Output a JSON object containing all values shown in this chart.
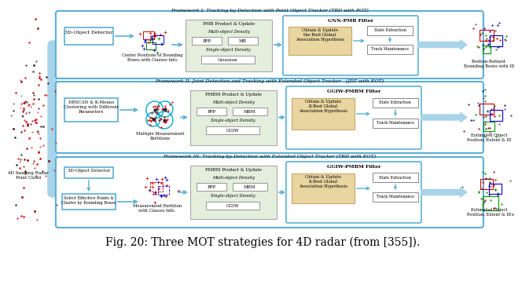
{
  "title": "Fig. 20: Three MOT strategies for 4D radar (from [355]).",
  "title_fontsize": 10,
  "bg_color": "#ffffff",
  "framework1_title": "Framework I: Tracking-by-Detection with Point Object Tracker (TBD with POT)",
  "framework2_title": "Framework II: Joint Detection and Tracking with Extended Object Tracker   (JDT with EOT)",
  "framework3_title": "Framework III: Tracking-by-Detection with Extended Object Tracker (TBD with EOT)",
  "left_label": "4D Imaging Radar\nPoint Cloud",
  "box_outer_color": "#5bafd6",
  "box_inner_tan": "#e8d5a0",
  "box_inner_tan_edge": "#c8a86b",
  "box_pmb_bg": "#dde8cc",
  "box_pmb_edge": "#aaaaaa",
  "arrow_color": "#a8d4ea",
  "small_arrow_color": "#5bafd6",
  "filter1": "GNN-PMB Filter",
  "filter2": "GGIW-PMBM Filter",
  "filter3": "GGIW-PMBM Filter"
}
